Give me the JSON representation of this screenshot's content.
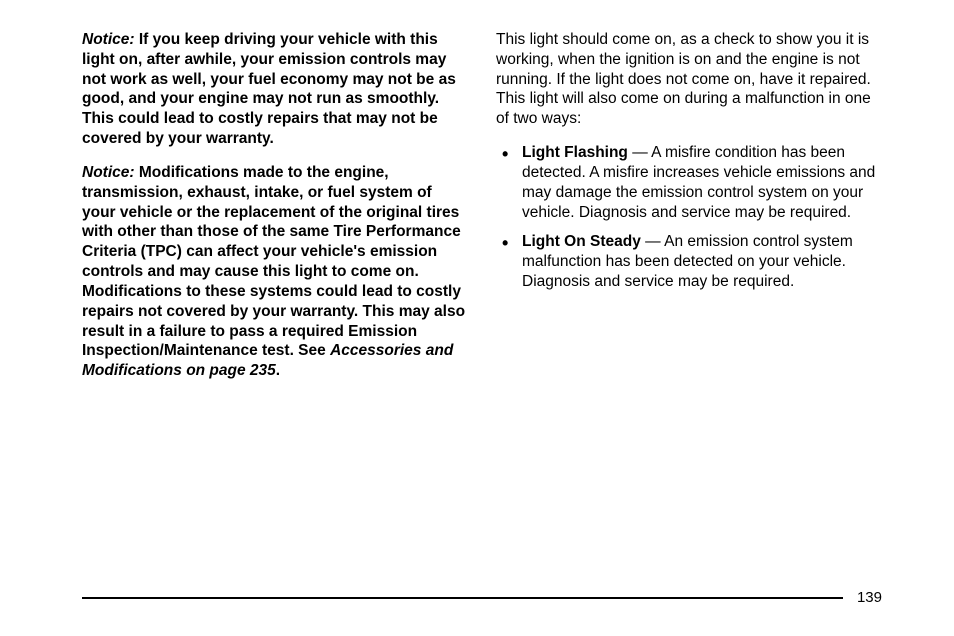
{
  "left": {
    "notice1_label": "Notice:",
    "notice1_body": "If you keep driving your vehicle with this light on, after awhile, your emission controls may not work as well, your fuel economy may not be as good, and your engine may not run as smoothly. This could lead to costly repairs that may not be covered by your warranty.",
    "notice2_label": "Notice:",
    "notice2_body_a": "Modifications made to the engine, transmission, exhaust, intake, or fuel system of your vehicle or the replacement of the original tires with other than those of the same Tire Performance Criteria (TPC) can affect your vehicle's emission controls and may cause this light to come on. Modifications to these systems could lead to costly repairs not covered by your warranty. This may also result in a failure to pass a required Emission Inspection/Maintenance test. See ",
    "notice2_ref": "Accessories and Modifications on page 235",
    "notice2_body_b": "."
  },
  "right": {
    "intro": "This light should come on, as a check to show you it is working, when the ignition is on and the engine is not running. If the light does not come on, have it repaired. This light will also come on during a malfunction in one of two ways:",
    "bullets": [
      {
        "title": "Light Flashing",
        "body": " — A misfire condition has been detected. A misfire increases vehicle emissions and may damage the emission control system on your vehicle. Diagnosis and service may be required."
      },
      {
        "title": "Light On Steady",
        "body": " — An emission control system malfunction has been detected on your vehicle. Diagnosis and service may be required."
      }
    ]
  },
  "page_number": "139"
}
